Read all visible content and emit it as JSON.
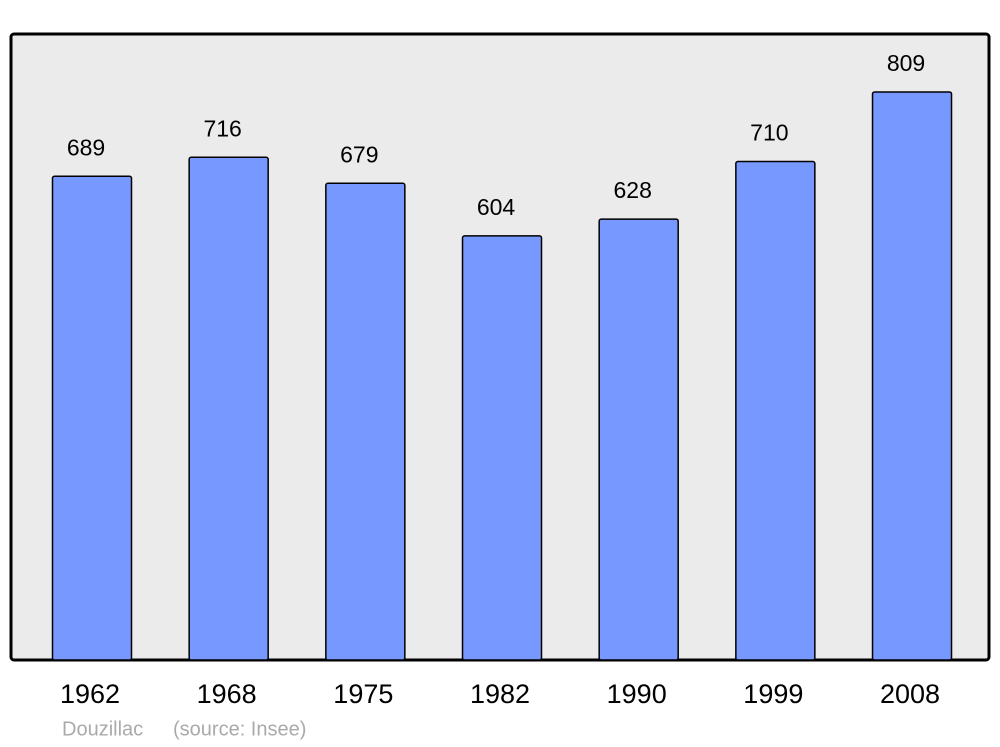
{
  "chart_data": {
    "type": "bar",
    "categories": [
      "1962",
      "1968",
      "1975",
      "1982",
      "1990",
      "1999",
      "2008"
    ],
    "values": [
      689,
      716,
      679,
      604,
      628,
      710,
      809
    ],
    "color": "#7799ff",
    "background": "#ebebeb",
    "name": "Douzillac",
    "source": "(source: Insee)"
  }
}
